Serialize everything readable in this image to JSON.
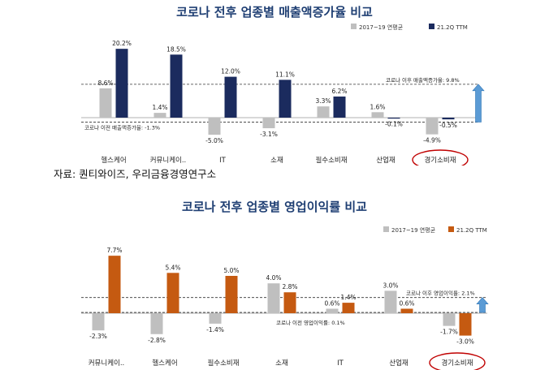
{
  "source_note": "자료: 퀀티와이즈, 우리금융경영연구소",
  "chart_data": [
    {
      "type": "bar",
      "title": "코로나 전후 업종별 매출액증가율 비교",
      "categories": [
        "헬스케어",
        "커뮤니케이..",
        "IT",
        "소재",
        "필수소비재",
        "산업재",
        "경기소비재"
      ],
      "series": [
        {
          "name": "2017~19 연평균",
          "color": "#bfbfbf",
          "values": [
            8.6,
            1.4,
            -5.0,
            -3.1,
            3.3,
            1.6,
            -4.9
          ]
        },
        {
          "name": "21.2Q TTM",
          "color": "#1b2b5e",
          "values": [
            20.2,
            18.5,
            12.0,
            11.1,
            6.2,
            -0.1,
            -0.5
          ]
        }
      ],
      "value_labels": [
        [
          "8.6%",
          "1.4%",
          "-5.0%",
          "-3.1%",
          "3.3%",
          "1.6%",
          "-4.9%"
        ],
        [
          "20.2%",
          "18.5%",
          "12.0%",
          "11.1%",
          "6.2%",
          "-0.1%",
          "-0.5%"
        ]
      ],
      "reference_lines": [
        {
          "label": "코로나 이후 매출액증가율: 9.8%",
          "value": 9.8
        },
        {
          "label": "코로나 이전 매출액증가율: -1.3%",
          "value": -1.3
        }
      ],
      "ylim": [
        -8,
        24
      ],
      "highlight_category": "경기소비재",
      "legend_position": "top-right"
    },
    {
      "type": "bar",
      "title": "코로나 전후 업종별 영업이익률 비교",
      "categories": [
        "커뮤니케이..",
        "헬스케어",
        "필수소비재",
        "소재",
        "IT",
        "산업재",
        "경기소비재"
      ],
      "series": [
        {
          "name": "2017~19 연평균",
          "color": "#bfbfbf",
          "values": [
            -2.3,
            -2.8,
            -1.4,
            4.0,
            0.6,
            3.0,
            -1.7
          ]
        },
        {
          "name": "21.2Q TTM",
          "color": "#c55a11",
          "values": [
            7.7,
            5.4,
            5.0,
            2.8,
            1.4,
            0.6,
            -3.0
          ]
        }
      ],
      "value_labels": [
        [
          "-2.3%",
          "-2.8%",
          "-1.4%",
          "4.0%",
          "0.6%",
          "3.0%",
          "-1.7%"
        ],
        [
          "7.7%",
          "5.4%",
          "5.0%",
          "2.8%",
          "1.4%",
          "0.6%",
          "-3.0%"
        ]
      ],
      "reference_lines": [
        {
          "label": "코로나 이후 영업이익률: 2.1%",
          "value": 2.1
        },
        {
          "label": "코로나 이전 영업이익률: 0.1%",
          "value": 0.1
        }
      ],
      "ylim": [
        -5,
        10
      ],
      "highlight_category": "경기소비재",
      "legend_position": "top-right"
    }
  ]
}
